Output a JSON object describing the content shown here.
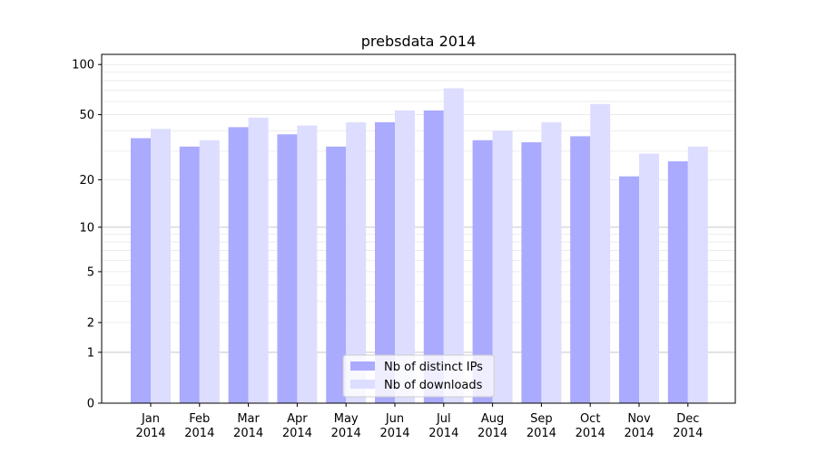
{
  "chart_data": {
    "type": "bar",
    "title": "prebsdata 2014",
    "xlabel": "",
    "ylabel": "",
    "y_scale": "log(1+y)",
    "ylim": [
      0,
      115
    ],
    "yticks": [
      0,
      1,
      2,
      5,
      10,
      20,
      50,
      100
    ],
    "categories": [
      [
        "Jan",
        "2014"
      ],
      [
        "Feb",
        "2014"
      ],
      [
        "Mar",
        "2014"
      ],
      [
        "Apr",
        "2014"
      ],
      [
        "May",
        "2014"
      ],
      [
        "Jun",
        "2014"
      ],
      [
        "Jul",
        "2014"
      ],
      [
        "Aug",
        "2014"
      ],
      [
        "Sep",
        "2014"
      ],
      [
        "Oct",
        "2014"
      ],
      [
        "Nov",
        "2014"
      ],
      [
        "Dec",
        "2014"
      ]
    ],
    "series": [
      {
        "name": "Nb of distinct IPs",
        "color": "#aaaaff",
        "values": [
          36,
          32,
          42,
          38,
          32,
          45,
          53,
          35,
          34,
          37,
          21,
          26
        ]
      },
      {
        "name": "Nb of downloads",
        "color": "#ddddff",
        "values": [
          41,
          35,
          48,
          43,
          45,
          53,
          72,
          40,
          45,
          58,
          29,
          32
        ]
      }
    ],
    "major_grid_at": [
      1,
      10
    ],
    "legend_position": "lower-center"
  }
}
